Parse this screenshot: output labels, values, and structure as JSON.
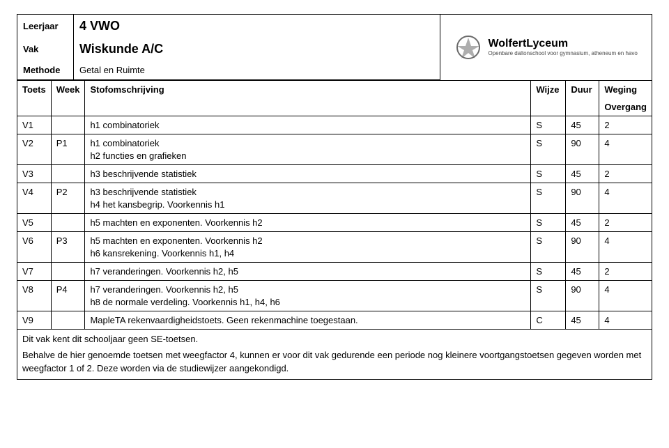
{
  "header": {
    "leerjaar_label": "Leerjaar",
    "leerjaar_value": "4 VWO",
    "vak_label": "Vak",
    "vak_value": "Wiskunde A/C",
    "methode_label": "Methode",
    "methode_value": "Getal en Ruimte",
    "logo_name_part1": "Wolfert",
    "logo_name_part2": "Lyceum",
    "logo_sub": "Openbare daltonschool voor gymnasium, atheneum en havo"
  },
  "columns": {
    "toets": "Toets",
    "week": "Week",
    "stof": "Stofomschrijving",
    "wijze": "Wijze",
    "duur": "Duur",
    "weging": "Weging",
    "overgang": "Overgang"
  },
  "rows": [
    {
      "toets": "V1",
      "week": "",
      "stof": [
        "h1 combinatoriek"
      ],
      "wijze": "S",
      "duur": "45",
      "weging": "2"
    },
    {
      "toets": "V2",
      "week": "P1",
      "stof": [
        "h1 combinatoriek",
        "h2 functies en grafieken"
      ],
      "wijze": "S",
      "duur": "90",
      "weging": "4"
    },
    {
      "toets": "V3",
      "week": "",
      "stof": [
        "h3 beschrijvende statistiek"
      ],
      "wijze": "S",
      "duur": "45",
      "weging": "2"
    },
    {
      "toets": "V4",
      "week": "P2",
      "stof": [
        "h3 beschrijvende statistiek",
        "h4 het kansbegrip. Voorkennis h1"
      ],
      "wijze": "S",
      "duur": "90",
      "weging": "4"
    },
    {
      "toets": "V5",
      "week": "",
      "stof": [
        "h5 machten en exponenten. Voorkennis h2"
      ],
      "wijze": "S",
      "duur": "45",
      "weging": "2"
    },
    {
      "toets": "V6",
      "week": "P3",
      "stof": [
        "h5 machten en exponenten. Voorkennis h2",
        "h6 kansrekening. Voorkennis h1, h4"
      ],
      "wijze": "S",
      "duur": "90",
      "weging": "4"
    },
    {
      "toets": "V7",
      "week": "",
      "stof": [
        "h7 veranderingen. Voorkennis h2, h5"
      ],
      "wijze": "S",
      "duur": "45",
      "weging": "2"
    },
    {
      "toets": "V8",
      "week": "P4",
      "stof": [
        "h7 veranderingen. Voorkennis h2, h5",
        "h8 de normale verdeling. Voorkennis h1, h4, h6"
      ],
      "wijze": "S",
      "duur": "90",
      "weging": "4"
    },
    {
      "toets": "V9",
      "week": "",
      "stof": [
        "MapleTA rekenvaardigheidstoets. Geen rekenmachine toegestaan."
      ],
      "wijze": "C",
      "duur": "45",
      "weging": "4"
    }
  ],
  "footer": {
    "line1": "Dit vak kent dit schooljaar geen SE-toetsen.",
    "line2": "Behalve de hier genoemde toetsen met weegfactor 4, kunnen er voor dit vak gedurende een periode nog kleinere voortgangstoetsen gegeven worden met weegfactor 1 of 2. Deze worden via de studiewijzer aangekondigd."
  },
  "style": {
    "page_bg": "#ffffff",
    "text_color": "#000000",
    "border_color": "#000000",
    "font_family": "Arial",
    "base_fontsize_pt": 10,
    "header_value_fontsize_pt": 14,
    "logo_colors": {
      "emblem": "#6b6b6b",
      "text": "#000000",
      "sub": "#444444"
    }
  }
}
